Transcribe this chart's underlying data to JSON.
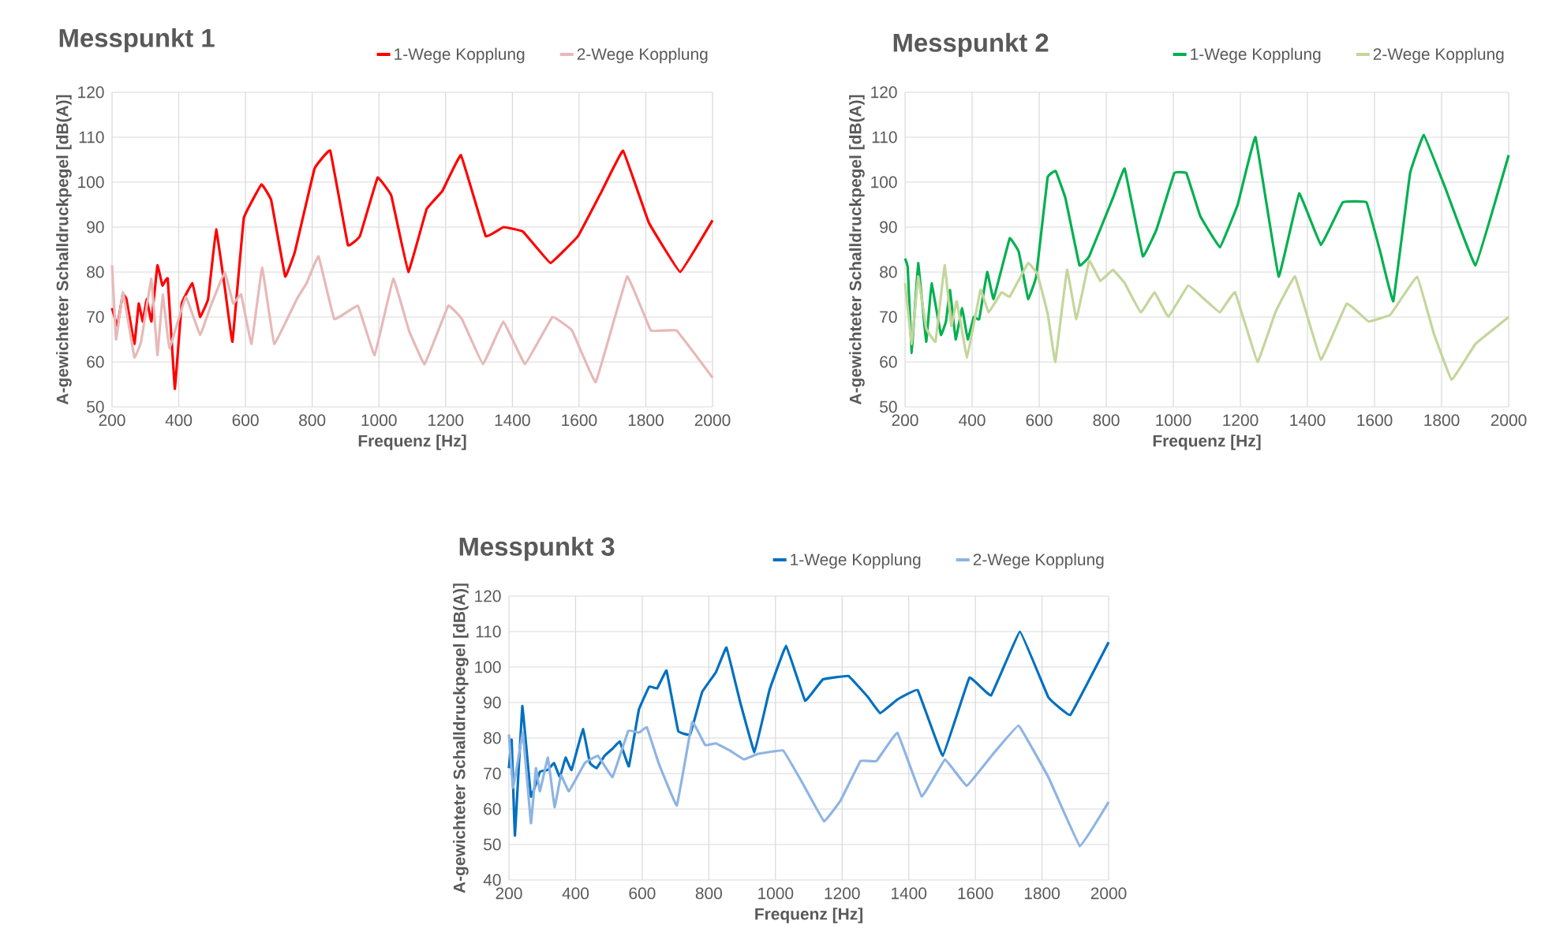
{
  "chart_data": [
    {
      "type": "line",
      "title": "Messpunkt 1",
      "xlabel": "Frequenz [Hz]",
      "ylabel": "A-gewichteter Schalldruckpegel [dB(A)]",
      "xlim": [
        200,
        2000
      ],
      "ylim": [
        50,
        120
      ],
      "xticks": [
        200,
        400,
        600,
        800,
        1000,
        1200,
        1400,
        1600,
        1800,
        2000
      ],
      "yticks": [
        50,
        60,
        70,
        80,
        90,
        100,
        110,
        120
      ],
      "grid": true,
      "legend": "top right",
      "marker": "none",
      "series": [
        {
          "name": "1-Wege Kopplung",
          "color": "#ff0000",
          "x": [
            200,
            216,
            232,
            243,
            267,
            280,
            292,
            304,
            318,
            336,
            351,
            367,
            388,
            409,
            441,
            464,
            488,
            512,
            539,
            561,
            595,
            648,
            677,
            719,
            748,
            807,
            854,
            907,
            943,
            996,
            1037,
            1088,
            1143,
            1190,
            1246,
            1320,
            1373,
            1432,
            1514,
            1597,
            1668,
            1732,
            1809,
            1903,
            2000
          ],
          "values": [
            72,
            68,
            75,
            74,
            64,
            73,
            69,
            74,
            69,
            81.5,
            77,
            78.5,
            54,
            73,
            77.5,
            70,
            74,
            89.5,
            76,
            64.5,
            92,
            99.5,
            96,
            79,
            84.5,
            103,
            107,
            86,
            88,
            101,
            97,
            80,
            94,
            98,
            106,
            88,
            90,
            89,
            82,
            88,
            98,
            107,
            91,
            80,
            91.5
          ]
        },
        {
          "name": "2-Wege Kopplung",
          "color": "#e6b9b8",
          "x": [
            200,
            212,
            233,
            267,
            287,
            318,
            336,
            352,
            372,
            421,
            464,
            496,
            538,
            563,
            587,
            618,
            650,
            686,
            754,
            783,
            819,
            866,
            937,
            987,
            1043,
            1090,
            1137,
            1208,
            1249,
            1312,
            1373,
            1438,
            1520,
            1579,
            1650,
            1744,
            1815,
            1892,
            2000
          ],
          "values": [
            81.5,
            65,
            75.5,
            61,
            64.5,
            78.5,
            61.5,
            75,
            63,
            74.5,
            66,
            72.5,
            80,
            73,
            75,
            64,
            81,
            64,
            74,
            77.5,
            83.5,
            69.5,
            72.5,
            61.5,
            78.5,
            67,
            59.5,
            72.5,
            69.5,
            59.5,
            69,
            59.5,
            70,
            67,
            55.5,
            79,
            67,
            67,
            56.5
          ]
        }
      ]
    },
    {
      "type": "line",
      "title": "Messpunkt 2",
      "xlabel": "Frequenz [Hz]",
      "ylabel": "A-gewichteter Schalldruckpegel [dB(A)]",
      "xlim": [
        200,
        2000
      ],
      "ylim": [
        50,
        120
      ],
      "xticks": [
        200,
        400,
        600,
        800,
        1000,
        1200,
        1400,
        1600,
        1800,
        2000
      ],
      "yticks": [
        50,
        60,
        70,
        80,
        90,
        100,
        110,
        120
      ],
      "grid": true,
      "legend": "top right",
      "marker": "none",
      "series": [
        {
          "name": "1-Wege Kopplung",
          "color": "#00b050",
          "x": [
            200,
            208,
            220,
            239,
            263,
            279,
            307,
            322,
            334,
            351,
            370,
            387,
            405,
            421,
            445,
            464,
            512,
            539,
            567,
            591,
            625,
            649,
            678,
            720,
            749,
            820,
            855,
            909,
            950,
            1003,
            1039,
            1080,
            1139,
            1192,
            1245,
            1314,
            1375,
            1440,
            1505,
            1576,
            1617,
            1656,
            1706,
            1747,
            1812,
            1901,
            2000
          ],
          "values": [
            83,
            81,
            62,
            82,
            64.5,
            77.5,
            66,
            69,
            76,
            65,
            72,
            65,
            70,
            69.5,
            80,
            74,
            87.5,
            84.5,
            74,
            79,
            101,
            102.5,
            96.5,
            81.5,
            83.5,
            96.5,
            103,
            83.5,
            89.5,
            102,
            102,
            92.5,
            85.5,
            95,
            110,
            79,
            97.5,
            86,
            95.5,
            95.5,
            84.5,
            73.5,
            102,
            110.5,
            98.5,
            81.5,
            106
          ]
        },
        {
          "name": "2-Wege Kopplung",
          "color": "#c3d69b",
          "x": [
            200,
            220,
            239,
            263,
            291,
            318,
            338,
            354,
            385,
            425,
            449,
            488,
            512,
            567,
            595,
            626,
            648,
            683,
            711,
            749,
            782,
            820,
            855,
            903,
            944,
            985,
            1044,
            1092,
            1139,
            1184,
            1251,
            1304,
            1363,
            1440,
            1517,
            1582,
            1647,
            1727,
            1776,
            1830,
            1901,
            2000
          ],
          "values": [
            77.5,
            64,
            79,
            67.5,
            64.5,
            81.5,
            68,
            73.5,
            61,
            76,
            71,
            75.5,
            74.5,
            82,
            79.5,
            70.5,
            60,
            80.5,
            69.5,
            82.5,
            78,
            80.5,
            77.5,
            71,
            75.5,
            70,
            77,
            74,
            71,
            75.5,
            60,
            71,
            79,
            60.5,
            73,
            69,
            70.5,
            79,
            66.5,
            56,
            64,
            70
          ]
        }
      ]
    },
    {
      "type": "line",
      "title": "Messpunkt 3",
      "xlabel": "Frequenz [Hz]",
      "ylabel": "A-gewichteter Schalldruckpegel [dB(A)]",
      "xlim": [
        200,
        2000
      ],
      "ylim": [
        40,
        120
      ],
      "xticks": [
        200,
        400,
        600,
        800,
        1000,
        1200,
        1400,
        1600,
        1800,
        2000
      ],
      "yticks": [
        40,
        50,
        60,
        70,
        80,
        90,
        100,
        110,
        120
      ],
      "grid": true,
      "legend": "top right",
      "marker": "none",
      "series": [
        {
          "name": "1-Wege Kopplung",
          "color": "#0070c0",
          "x": [
            200,
            208,
            218,
            240,
            266,
            293,
            317,
            335,
            353,
            370,
            388,
            422,
            443,
            463,
            487,
            511,
            533,
            560,
            590,
            621,
            645,
            673,
            708,
            744,
            780,
            821,
            853,
            893,
            937,
            982,
            1032,
            1089,
            1142,
            1219,
            1278,
            1314,
            1368,
            1427,
            1502,
            1582,
            1647,
            1734,
            1819,
            1885,
            2000
          ],
          "values": [
            71.5,
            79.5,
            52.5,
            89,
            63.5,
            70.5,
            71,
            73,
            69,
            74.5,
            71,
            82.5,
            73,
            71.5,
            75,
            77,
            79,
            72,
            88,
            94.5,
            94,
            99,
            82,
            81,
            93,
            98.5,
            105.5,
            90.5,
            76,
            93.5,
            106,
            90.5,
            96.5,
            97.5,
            91.5,
            87,
            91,
            93.5,
            75,
            97,
            92,
            110,
            91.5,
            86.5,
            107
          ]
        },
        {
          "name": "2-Wege Kopplung",
          "color": "#8eb4e3",
          "x": [
            200,
            212,
            226,
            242,
            266,
            281,
            293,
            317,
            337,
            356,
            380,
            428,
            467,
            511,
            558,
            590,
            614,
            649,
            704,
            750,
            789,
            821,
            863,
            905,
            946,
            1023,
            1077,
            1146,
            1196,
            1255,
            1303,
            1366,
            1439,
            1509,
            1574,
            1653,
            1730,
            1819,
            1914,
            2000
          ],
          "values": [
            81,
            66,
            73,
            81.5,
            56,
            71.5,
            65,
            74.5,
            60.5,
            69.5,
            65,
            73,
            75,
            69,
            82,
            81.5,
            83,
            73,
            61,
            84.5,
            78,
            78.5,
            76.5,
            74,
            75.5,
            76.5,
            68,
            56.5,
            62.5,
            73.5,
            73.5,
            81.5,
            63.5,
            74,
            66.5,
            75.5,
            83.5,
            69,
            49.5,
            62
          ]
        }
      ]
    }
  ]
}
